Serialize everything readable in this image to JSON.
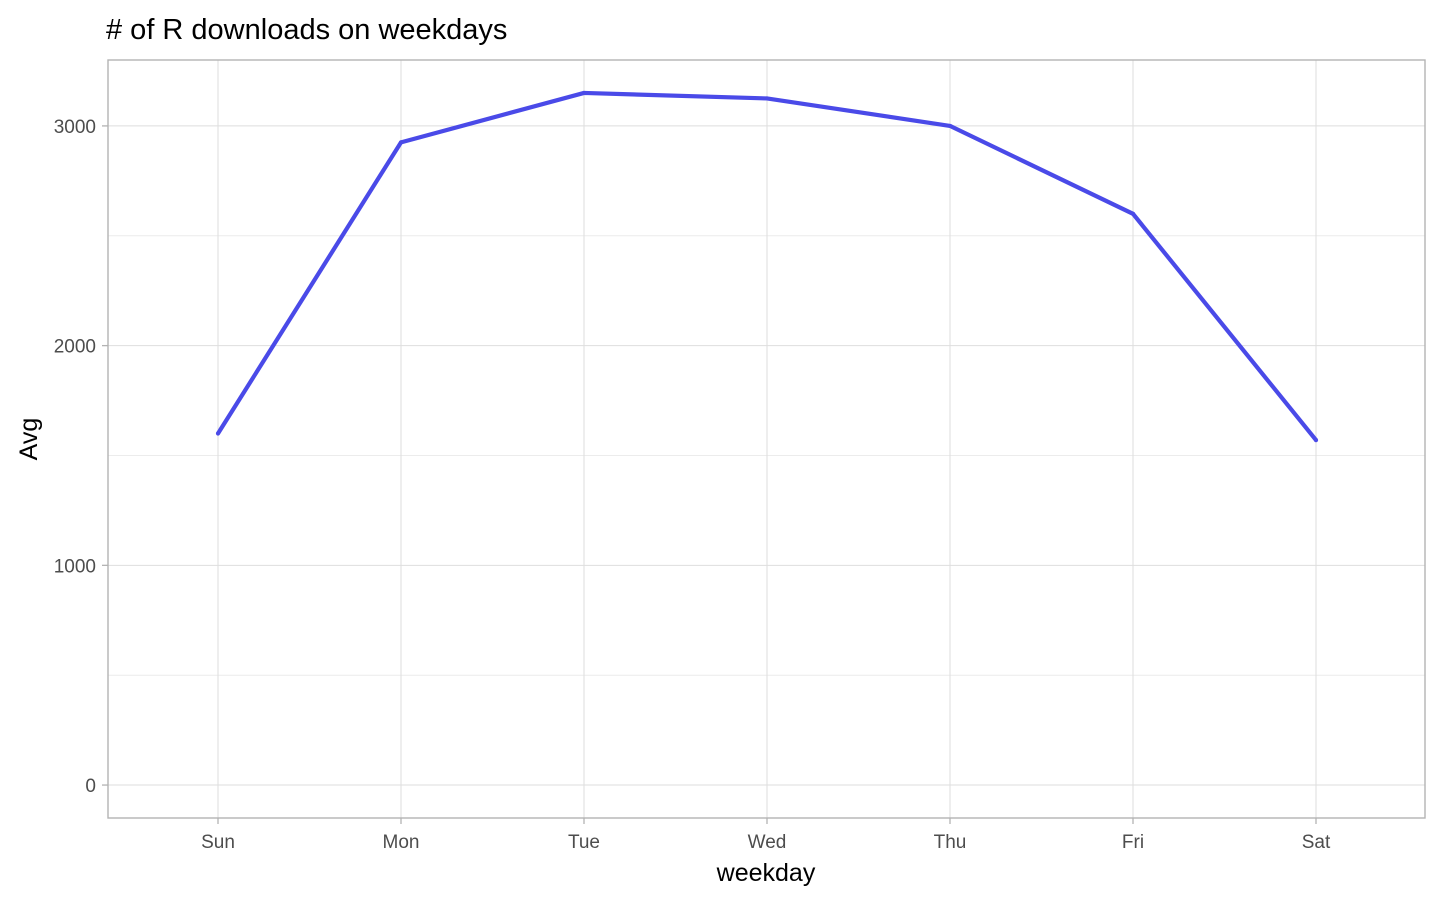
{
  "chart_data": {
    "type": "line",
    "title": "# of R downloads on weekdays",
    "xlabel": "weekday",
    "ylabel": "Avg",
    "categories": [
      "Sun",
      "Mon",
      "Tue",
      "Wed",
      "Thu",
      "Fri",
      "Sat"
    ],
    "values": [
      1600,
      2925,
      3150,
      3125,
      3000,
      2600,
      1570
    ],
    "y_ticks": [
      0,
      1000,
      2000,
      3000
    ],
    "y_tick_labels": [
      "0",
      "1000",
      "2000",
      "3000"
    ],
    "y_minor_ticks": [
      500,
      1500,
      2500
    ],
    "ylim": [
      -150,
      3300
    ],
    "grid": true,
    "legend": "none",
    "line_color": "#4a4ae8"
  }
}
